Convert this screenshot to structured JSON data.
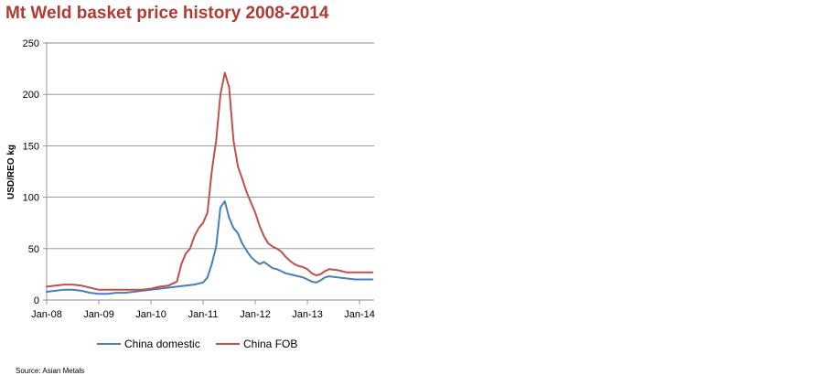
{
  "chart_data": {
    "type": "line",
    "title": "Mt Weld basket price history 2008-2014",
    "xlabel": "",
    "ylabel": "USD/REO kg",
    "ylim": [
      0,
      250
    ],
    "y_ticks": [
      "0",
      "50",
      "100",
      "150",
      "200",
      "250"
    ],
    "x_tick_labels": [
      "Jan-08",
      "Jan-09",
      "Jan-10",
      "Jan-11",
      "Jan-12",
      "Jan-13",
      "Jan-14"
    ],
    "x_start": "Jan-08",
    "x_end": "Apr-14",
    "grid": "horizontal",
    "legend_position": "bottom",
    "source": "Source: Asian Metals",
    "series": [
      {
        "name": "China domestic",
        "color": "#4a7ebb",
        "points": [
          [
            "Jan-08",
            8
          ],
          [
            "Mar-08",
            9
          ],
          [
            "May-08",
            10
          ],
          [
            "Jul-08",
            10
          ],
          [
            "Sep-08",
            9
          ],
          [
            "Nov-08",
            7
          ],
          [
            "Jan-09",
            6
          ],
          [
            "Mar-09",
            6
          ],
          [
            "May-09",
            7
          ],
          [
            "Jul-09",
            7
          ],
          [
            "Sep-09",
            8
          ],
          [
            "Nov-09",
            9
          ],
          [
            "Jan-10",
            10
          ],
          [
            "Mar-10",
            11
          ],
          [
            "May-10",
            12
          ],
          [
            "Jul-10",
            13
          ],
          [
            "Sep-10",
            14
          ],
          [
            "Nov-10",
            15
          ],
          [
            "Jan-11",
            17
          ],
          [
            "Feb-11",
            22
          ],
          [
            "Mar-11",
            35
          ],
          [
            "Apr-11",
            52
          ],
          [
            "May-11",
            90
          ],
          [
            "Jun-11",
            96
          ],
          [
            "Jul-11",
            80
          ],
          [
            "Aug-11",
            70
          ],
          [
            "Sep-11",
            65
          ],
          [
            "Oct-11",
            55
          ],
          [
            "Nov-11",
            48
          ],
          [
            "Dec-11",
            42
          ],
          [
            "Jan-12",
            38
          ],
          [
            "Feb-12",
            35
          ],
          [
            "Mar-12",
            37
          ],
          [
            "Apr-12",
            34
          ],
          [
            "May-12",
            31
          ],
          [
            "Jun-12",
            30
          ],
          [
            "Jul-12",
            28
          ],
          [
            "Aug-12",
            26
          ],
          [
            "Sep-12",
            25
          ],
          [
            "Oct-12",
            24
          ],
          [
            "Nov-12",
            23
          ],
          [
            "Dec-12",
            22
          ],
          [
            "Jan-13",
            20
          ],
          [
            "Feb-13",
            18
          ],
          [
            "Mar-13",
            17
          ],
          [
            "Apr-13",
            19
          ],
          [
            "May-13",
            22
          ],
          [
            "Jun-13",
            23
          ],
          [
            "Aug-13",
            22
          ],
          [
            "Oct-13",
            21
          ],
          [
            "Dec-13",
            20
          ],
          [
            "Feb-14",
            20
          ],
          [
            "Apr-14",
            20
          ]
        ]
      },
      {
        "name": "China FOB",
        "color": "#c0504d",
        "points": [
          [
            "Jan-08",
            13
          ],
          [
            "Mar-08",
            14
          ],
          [
            "May-08",
            15
          ],
          [
            "Jul-08",
            15
          ],
          [
            "Sep-08",
            14
          ],
          [
            "Nov-08",
            12
          ],
          [
            "Jan-09",
            10
          ],
          [
            "Mar-09",
            10
          ],
          [
            "May-09",
            10
          ],
          [
            "Jul-09",
            10
          ],
          [
            "Sep-09",
            10
          ],
          [
            "Nov-09",
            10
          ],
          [
            "Jan-10",
            11
          ],
          [
            "Mar-10",
            13
          ],
          [
            "May-10",
            14
          ],
          [
            "Jul-10",
            18
          ],
          [
            "Aug-10",
            35
          ],
          [
            "Sep-10",
            45
          ],
          [
            "Oct-10",
            50
          ],
          [
            "Nov-10",
            62
          ],
          [
            "Dec-10",
            70
          ],
          [
            "Jan-11",
            75
          ],
          [
            "Feb-11",
            85
          ],
          [
            "Mar-11",
            125
          ],
          [
            "Apr-11",
            155
          ],
          [
            "May-11",
            200
          ],
          [
            "Jun-11",
            221
          ],
          [
            "Jul-11",
            207
          ],
          [
            "Aug-11",
            155
          ],
          [
            "Sep-11",
            130
          ],
          [
            "Oct-11",
            118
          ],
          [
            "Nov-11",
            105
          ],
          [
            "Dec-11",
            95
          ],
          [
            "Jan-12",
            85
          ],
          [
            "Feb-12",
            72
          ],
          [
            "Mar-12",
            62
          ],
          [
            "Apr-12",
            55
          ],
          [
            "May-12",
            52
          ],
          [
            "Jun-12",
            50
          ],
          [
            "Jul-12",
            47
          ],
          [
            "Aug-12",
            42
          ],
          [
            "Sep-12",
            38
          ],
          [
            "Oct-12",
            35
          ],
          [
            "Nov-12",
            33
          ],
          [
            "Dec-12",
            32
          ],
          [
            "Jan-13",
            30
          ],
          [
            "Feb-13",
            26
          ],
          [
            "Mar-13",
            24
          ],
          [
            "Apr-13",
            25
          ],
          [
            "May-13",
            28
          ],
          [
            "Jun-13",
            30
          ],
          [
            "Aug-13",
            29
          ],
          [
            "Oct-13",
            27
          ],
          [
            "Dec-13",
            27
          ],
          [
            "Feb-14",
            27
          ],
          [
            "Apr-14",
            27
          ]
        ]
      }
    ]
  }
}
